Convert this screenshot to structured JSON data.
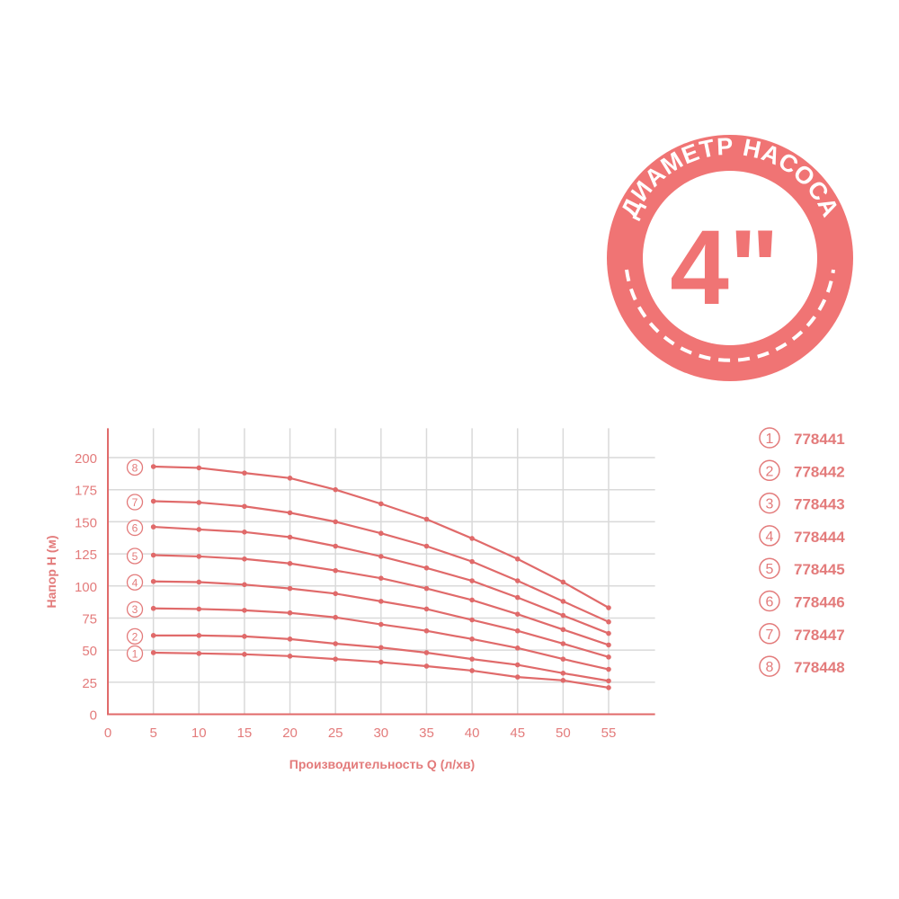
{
  "badge": {
    "arc_text": "ДИАМЕТР НАСОСА",
    "size_text": "4\"",
    "color": "#f07474"
  },
  "colors": {
    "line": "#e06a6a",
    "text": "#e37b7b",
    "grid": "#d9d9d9"
  },
  "chart_data": {
    "type": "line",
    "title": "",
    "xlabel": "Производительность Q (л/хв)",
    "ylabel": "Напор H (м)",
    "xlim": [
      0,
      60
    ],
    "ylim": [
      0,
      225
    ],
    "xticks": [
      0,
      5,
      10,
      15,
      20,
      25,
      30,
      35,
      40,
      45,
      50,
      55
    ],
    "yticks": [
      0,
      25,
      50,
      75,
      100,
      125,
      150,
      175,
      200
    ],
    "grid": true,
    "legend_position": "right",
    "x": [
      5,
      10,
      15,
      20,
      25,
      30,
      35,
      40,
      45,
      50,
      55
    ],
    "series": [
      {
        "name": "778441",
        "marker": "1",
        "values": [
          48,
          47.4,
          46.7,
          45.3,
          43,
          40.6,
          37.5,
          34,
          29,
          26.4,
          20.7
        ]
      },
      {
        "name": "778442",
        "marker": "2",
        "values": [
          61.4,
          61.4,
          60.7,
          58.6,
          55,
          52,
          48,
          43,
          38.5,
          32,
          26
        ]
      },
      {
        "name": "778443",
        "marker": "3",
        "values": [
          82.5,
          82,
          81,
          79,
          75.5,
          70,
          65,
          58.6,
          51.6,
          43,
          35
        ]
      },
      {
        "name": "778444",
        "marker": "4",
        "values": [
          103.5,
          103,
          101,
          98,
          94,
          88,
          82,
          73.5,
          65,
          55,
          44.6
        ]
      },
      {
        "name": "778445",
        "marker": "5",
        "values": [
          124,
          123,
          121,
          117.5,
          112,
          106,
          98,
          89,
          78,
          66,
          54
        ]
      },
      {
        "name": "778446",
        "marker": "6",
        "values": [
          146,
          144,
          142,
          138,
          131,
          123,
          114,
          104,
          91,
          77,
          63
        ]
      },
      {
        "name": "778447",
        "marker": "7",
        "values": [
          166,
          165,
          162,
          157,
          150,
          141,
          131,
          119,
          104,
          88,
          72
        ]
      },
      {
        "name": "778448",
        "marker": "8",
        "values": [
          193,
          192,
          188,
          184,
          175,
          164,
          152,
          137,
          121,
          103,
          83
        ]
      }
    ]
  }
}
